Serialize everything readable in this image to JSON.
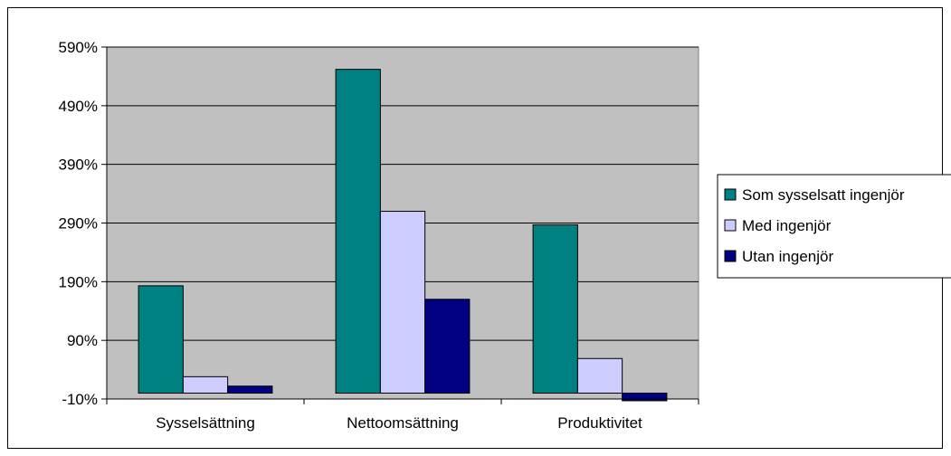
{
  "chart_data": {
    "type": "bar",
    "categories": [
      "Sysselsättning",
      "Nettoomsättning",
      "Produktivitet"
    ],
    "series": [
      {
        "name": "Som sysselsatt ingenjör",
        "color": "#008080",
        "values": [
          183,
          552,
          287
        ]
      },
      {
        "name": "Med ingenjör",
        "color": "#ccccff",
        "values": [
          28,
          310,
          59
        ]
      },
      {
        "name": "Utan ingenjör",
        "color": "#000080",
        "values": [
          12,
          160,
          -13
        ]
      }
    ],
    "ylim": [
      -10,
      590
    ],
    "yticks": [
      -10,
      90,
      190,
      290,
      390,
      490,
      590
    ],
    "ytick_labels": [
      "-10%",
      "90%",
      "190%",
      "290%",
      "390%",
      "490%",
      "590%"
    ],
    "plot_background": "#c0c0c0",
    "grid": true,
    "legend_position": "right"
  }
}
